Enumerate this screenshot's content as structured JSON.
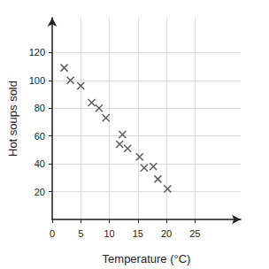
{
  "chart_data": {
    "type": "scatter",
    "x_label": "Temperature (°C)",
    "y_label": "Hot soups sold",
    "x": [
      2.1,
      3.2,
      5,
      6.9,
      8.2,
      9.4,
      11.8,
      12.3,
      13.2,
      15.3,
      16.1,
      17.7,
      18.5,
      20.2
    ],
    "values": [
      109,
      100,
      96,
      84,
      80,
      73,
      54,
      61,
      51,
      45,
      37,
      38,
      29,
      22
    ],
    "color": "#333333",
    "marker": "x",
    "xlim": [
      0,
      33
    ],
    "xticks": [
      0,
      5,
      10,
      15,
      20,
      25
    ],
    "ylim": [
      0,
      145
    ],
    "yticks": [
      20,
      40,
      60,
      80,
      100,
      120
    ],
    "grid": true
  }
}
